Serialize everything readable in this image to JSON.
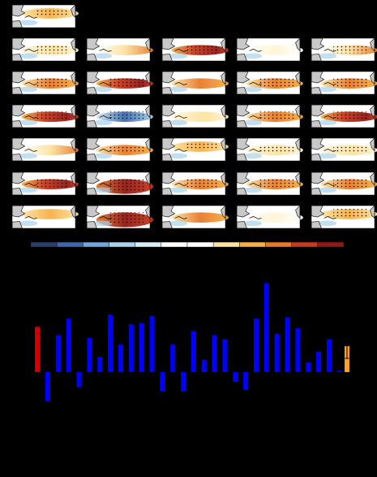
{
  "colors": {
    "background": "#000000",
    "land": "#c8c8c8",
    "coast": "#000000",
    "stipple": "#000000",
    "positive_bar": "#0000ff",
    "reference_bar": "#d40000",
    "ensemble_bar": "#ffa020",
    "errorbar": "#000000"
  },
  "colorbar_colors": [
    "#2d3f6c",
    "#3c6aa8",
    "#6fa8d8",
    "#a9d2ec",
    "#d8ecf6",
    "#ffffff",
    "#ffffff",
    "#fde3a0",
    "#f6b046",
    "#e67a2b",
    "#c63a1e",
    "#8f1a16"
  ],
  "maps": {
    "reference": {
      "pattern": "warm-north",
      "stipple": true
    },
    "panels": [
      {
        "pattern": "weak-warm",
        "stipple": true
      },
      {
        "pattern": "warm-east",
        "stipple": false
      },
      {
        "pattern": "strong-band",
        "stipple": true
      },
      {
        "pattern": "weak",
        "stipple": false
      },
      {
        "pattern": "warm-east",
        "stipple": true
      },
      {
        "pattern": "warm-band",
        "stipple": true
      },
      {
        "pattern": "strong-band",
        "stipple": true
      },
      {
        "pattern": "warm-band",
        "stipple": false
      },
      {
        "pattern": "warm-band",
        "stipple": true
      },
      {
        "pattern": "warm-band",
        "stipple": true
      },
      {
        "pattern": "strong-band",
        "stipple": true
      },
      {
        "pattern": "cold-band",
        "stipple": true
      },
      {
        "pattern": "weak-warm",
        "stipple": false
      },
      {
        "pattern": "warm-band",
        "stipple": true
      },
      {
        "pattern": "strong-band",
        "stipple": true
      },
      {
        "pattern": "warm-east",
        "stipple": false
      },
      {
        "pattern": "warm-band",
        "stipple": true
      },
      {
        "pattern": "warm-north",
        "stipple": true
      },
      {
        "pattern": "weak-warm",
        "stipple": true
      },
      {
        "pattern": "weak-warm",
        "stipple": true
      },
      {
        "pattern": "strong-band",
        "stipple": true
      },
      {
        "pattern": "strong-wide",
        "stipple": true
      },
      {
        "pattern": "warm-band",
        "stipple": true
      },
      {
        "pattern": "warm-band",
        "stipple": true
      },
      {
        "pattern": "warm-band",
        "stipple": true
      },
      {
        "pattern": "warm-north",
        "stipple": false
      },
      {
        "pattern": "strong-wide",
        "stipple": true
      },
      {
        "pattern": "warm-band",
        "stipple": false
      },
      {
        "pattern": "weak",
        "stipple": false
      },
      {
        "pattern": "warm-north",
        "stipple": true
      }
    ]
  },
  "chart_data": {
    "type": "bar",
    "ylim": [
      -0.25,
      0.7
    ],
    "reference_value": 0.33,
    "values": [
      -0.21,
      0.27,
      0.39,
      -0.11,
      0.25,
      0.11,
      0.42,
      0.2,
      0.35,
      0.36,
      0.41,
      -0.14,
      0.2,
      -0.14,
      0.3,
      0.09,
      0.27,
      0.24,
      -0.07,
      -0.13,
      0.39,
      0.65,
      0.28,
      0.4,
      0.32,
      0.07,
      0.15,
      0.24,
      0.01
    ],
    "ensemble_mean": 0.19,
    "ensemble_error": 0.09
  }
}
